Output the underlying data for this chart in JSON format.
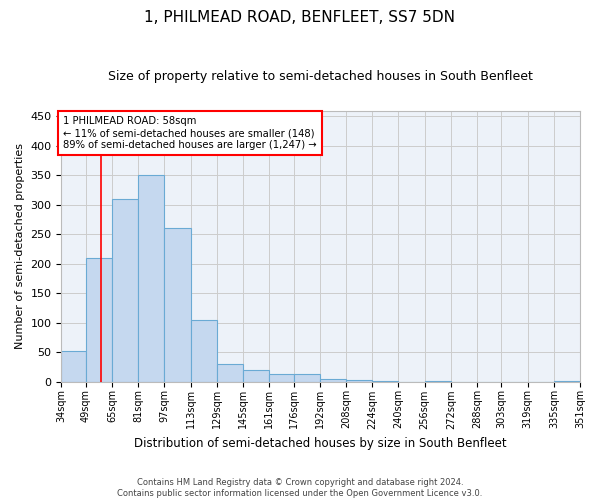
{
  "title": "1, PHILMEAD ROAD, BENFLEET, SS7 5DN",
  "subtitle": "Size of property relative to semi-detached houses in South Benfleet",
  "xlabel": "Distribution of semi-detached houses by size in South Benfleet",
  "ylabel": "Number of semi-detached properties",
  "footer_line1": "Contains HM Land Registry data © Crown copyright and database right 2024.",
  "footer_line2": "Contains public sector information licensed under the Open Government Licence v3.0.",
  "annotation_line1": "1 PHILMEAD ROAD: 58sqm",
  "annotation_line2": "← 11% of semi-detached houses are smaller (148)",
  "annotation_line3": "89% of semi-detached houses are larger (1,247) →",
  "bin_edges": [
    34,
    49,
    65,
    81,
    97,
    113,
    129,
    145,
    161,
    176,
    192,
    208,
    224,
    240,
    256,
    272,
    288,
    303,
    319,
    335,
    351
  ],
  "bin_labels": [
    "34sqm",
    "49sqm",
    "65sqm",
    "81sqm",
    "97sqm",
    "113sqm",
    "129sqm",
    "145sqm",
    "161sqm",
    "176sqm",
    "192sqm",
    "208sqm",
    "224sqm",
    "240sqm",
    "256sqm",
    "272sqm",
    "288sqm",
    "303sqm",
    "319sqm",
    "335sqm",
    "351sqm"
  ],
  "bar_heights": [
    52,
    210,
    310,
    350,
    260,
    105,
    30,
    20,
    13,
    13,
    5,
    2,
    1,
    0,
    1,
    0,
    0,
    0,
    0,
    1
  ],
  "bar_color": "#c5d8ef",
  "bar_edge_color": "#6aaad4",
  "red_line_x": 58,
  "ylim": [
    0,
    460
  ],
  "yticks": [
    0,
    50,
    100,
    150,
    200,
    250,
    300,
    350,
    400,
    450
  ],
  "grid_color": "#cccccc",
  "bg_color": "#edf2f9"
}
